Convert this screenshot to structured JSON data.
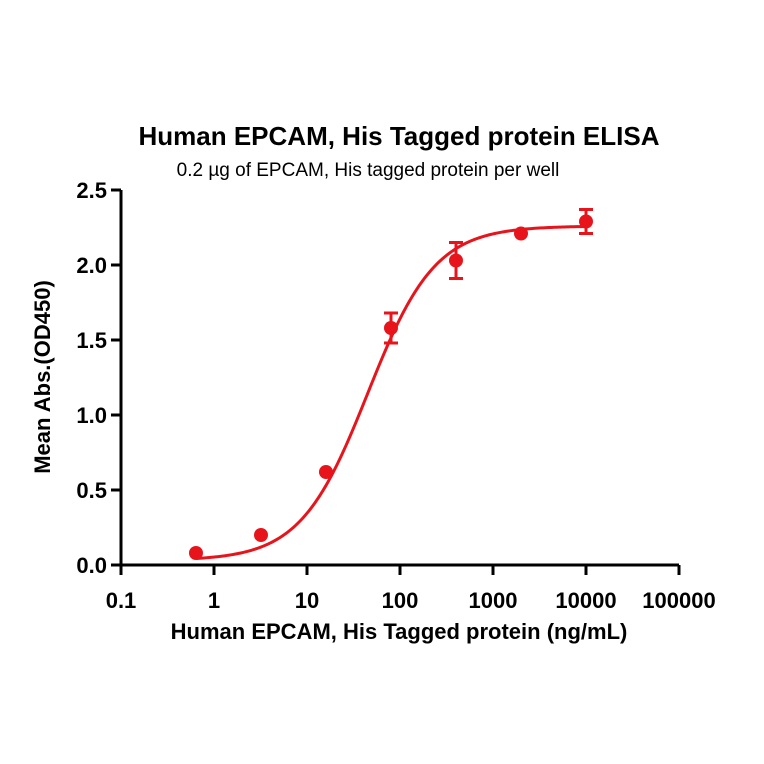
{
  "chart_data": {
    "type": "scatter",
    "title": "Human EPCAM, His Tagged protein ELISA",
    "subtitle": "0.2 µg of EPCAM, His tagged protein per well",
    "xlabel": "Human EPCAM, His Tagged protein (ng/mL)",
    "ylabel": "Mean Abs.(OD450)",
    "x_scale": "log",
    "xlim": [
      0.1,
      100000
    ],
    "ylim": [
      0,
      2.5
    ],
    "x_ticks": [
      0.1,
      1,
      10,
      100,
      1000,
      10000,
      100000
    ],
    "x_tick_labels": [
      "0.1",
      "1",
      "10",
      "100",
      "1000",
      "10000",
      "100000"
    ],
    "y_ticks": [
      0,
      0.5,
      1.0,
      1.5,
      2.0,
      2.5
    ],
    "y_tick_labels": [
      "0.0",
      "0.5",
      "1.0",
      "1.5",
      "2.0",
      "2.5"
    ],
    "grid": false,
    "color": "#e8141c",
    "series": [
      {
        "x": [
          0.64,
          3.2,
          16,
          80,
          400,
          2000,
          10000
        ],
        "y": [
          0.08,
          0.2,
          0.62,
          1.58,
          2.03,
          2.21,
          2.29
        ],
        "error": [
          0.01,
          0.01,
          0.02,
          0.1,
          0.12,
          0.02,
          0.08
        ]
      }
    ],
    "fit": {
      "model": "4PL",
      "bottom": 0.03,
      "top": 2.26,
      "ec50": 45,
      "hill": 1.2
    }
  }
}
